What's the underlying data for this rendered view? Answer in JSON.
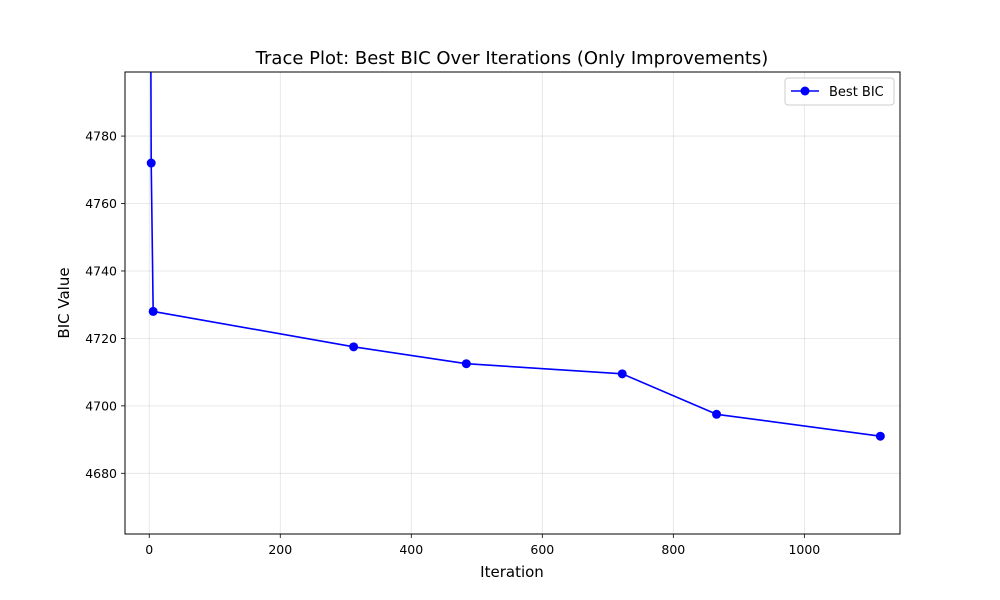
{
  "chart_data": {
    "type": "line",
    "title": "Trace Plot: Best BIC Over Iterations (Only Improvements)",
    "xlabel": "Iteration",
    "ylabel": "BIC Value",
    "xlim": [
      -37,
      1146
    ],
    "ylim": [
      4662,
      4799
    ],
    "xticks": [
      0,
      200,
      400,
      600,
      800,
      1000
    ],
    "yticks": [
      4680,
      4700,
      4720,
      4740,
      4760,
      4780
    ],
    "grid": true,
    "legend_position": "top-right",
    "series": [
      {
        "name": "Best BIC",
        "color": "#0000ff",
        "marker": "circle",
        "points": [
          {
            "x": 2,
            "y": 4830
          },
          {
            "x": 3,
            "y": 4772
          },
          {
            "x": 6,
            "y": 4728
          },
          {
            "x": 312,
            "y": 4717.5
          },
          {
            "x": 484,
            "y": 4712.5
          },
          {
            "x": 722,
            "y": 4709.5
          },
          {
            "x": 866,
            "y": 4697.5
          },
          {
            "x": 1116,
            "y": 4691
          }
        ]
      }
    ]
  }
}
